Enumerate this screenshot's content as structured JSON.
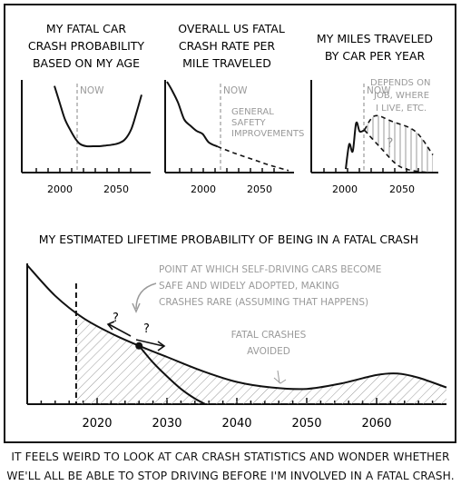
{
  "caption": {
    "line1": "IT FEELS WEIRD TO LOOK AT CAR CRASH STATISTICS AND WONDER WHETHER",
    "line2": "WE'LL ALL BE ABLE TO STOP DRIVING BEFORE I'M INVOLVED IN A FATAL CRASH."
  },
  "colors": {
    "ink": "#111111",
    "annotation": "#9a9a9a"
  },
  "chart_data": [
    {
      "type": "line",
      "title": [
        "MY FATAL CAR",
        "CRASH PROBABILITY",
        "BASED ON MY AGE"
      ],
      "x_ticks": [
        "2000",
        "2050"
      ],
      "annotations": [
        "NOW"
      ],
      "series": [
        {
          "x": [
            2000,
            2004,
            2008,
            2012,
            2016,
            2020,
            2025,
            2030,
            2035,
            2040,
            2045,
            2050,
            2055,
            2060,
            2064,
            2068
          ],
          "y": [
            92,
            70,
            48,
            34,
            22,
            14,
            11,
            11,
            11,
            12,
            13,
            15,
            20,
            34,
            56,
            80
          ]
        }
      ]
    },
    {
      "type": "line",
      "title": [
        "OVERALL US FATAL",
        "CRASH RATE PER",
        "MILE TRAVELED"
      ],
      "x_ticks": [
        "2000",
        "2050"
      ],
      "annotations": [
        "NOW",
        "GENERAL",
        "SAFETY",
        "IMPROVEMENTS"
      ],
      "series": [
        {
          "x": [
            1976,
            1980,
            1985,
            1990,
            1995,
            2000,
            2005,
            2010,
            2017
          ],
          "y": [
            100,
            92,
            80,
            64,
            58,
            53,
            50,
            42,
            38
          ]
        },
        {
          "x": [
            2017,
            2030,
            2045,
            2060,
            2075
          ],
          "y": [
            38,
            32,
            26,
            20,
            15
          ],
          "style": "dashed"
        }
      ]
    },
    {
      "type": "line",
      "title": [
        "MY MILES TRAVELED",
        "BY CAR PER YEAR"
      ],
      "x_ticks": [
        "2000",
        "2050"
      ],
      "annotations": [
        "NOW",
        "DEPENDS ON",
        "JOB, WHERE",
        "I LIVE, ETC.",
        "?"
      ],
      "series": [
        {
          "x": [
            2000,
            2003,
            2006,
            2009,
            2012,
            2016
          ],
          "y": [
            5,
            40,
            30,
            70,
            58,
            60
          ]
        },
        {
          "x": [
            2016,
            2025,
            2040,
            2060,
            2075
          ],
          "y": [
            60,
            80,
            72,
            58,
            25
          ],
          "style": "dashed"
        },
        {
          "x": [
            2016,
            2030,
            2045,
            2060,
            2075
          ],
          "y": [
            60,
            35,
            10,
            2,
            0
          ],
          "style": "dashed"
        }
      ]
    },
    {
      "type": "line",
      "title": "MY ESTIMATED LIFETIME PROBABILITY OF BEING IN A FATAL CRASH",
      "x_ticks": [
        "2020",
        "2030",
        "2040",
        "2050",
        "2060"
      ],
      "xlim": [
        2010,
        2070
      ],
      "annotations": [
        "POINT AT WHICH SELF-DRIVING CARS BECOME",
        "SAFE AND WIDELY ADOPTED, MAKING",
        "CRASHES RARE (ASSUMING THAT HAPPENS)",
        "FATAL CRASHES",
        "AVOIDED",
        "?",
        "?"
      ],
      "series": [
        {
          "x": [
            2010,
            2014,
            2018,
            2022,
            2026,
            2030,
            2035,
            2040,
            2045,
            2050,
            2055,
            2060,
            2063,
            2066,
            2070
          ],
          "y": [
            100,
            78,
            62,
            51,
            42,
            34,
            24,
            16,
            12,
            11,
            15,
            21,
            22,
            19,
            12
          ]
        },
        {
          "x": [
            2026,
            2028,
            2030,
            2032,
            2034,
            2035.5
          ],
          "y": [
            42,
            30,
            20,
            11,
            4,
            0
          ],
          "name": ""
        }
      ],
      "markers": [
        {
          "x": 2026,
          "y": 42
        }
      ],
      "vlines": [
        {
          "x": 2017,
          "style": "dashed"
        }
      ]
    }
  ]
}
